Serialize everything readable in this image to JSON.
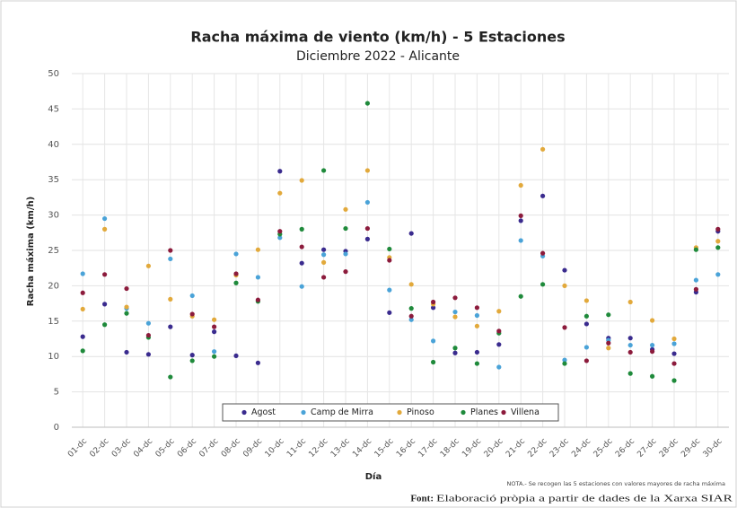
{
  "chart_data": {
    "type": "scatter",
    "title": "Racha máxima de viento (km/h) - 5 Estaciones",
    "subtitle": "Diciembre 2022 - Alicante",
    "y_label": "Racha máxima (km/h)",
    "x_label": "Día",
    "note": "NOTA.- Se recogen las 5 estaciones con valores mayores de racha máxima",
    "source_label": "Font:",
    "source": "Elaboració pròpia a partir de dades de la Xarxa SIAR",
    "categories": [
      "01-dc",
      "02-dc",
      "03-dc",
      "04-dc",
      "05-dc",
      "06-dc",
      "07-dc",
      "08-dc",
      "09-dc",
      "10-dc",
      "11-dc",
      "12-dc",
      "13-dc",
      "14-dc",
      "15-dc",
      "16-dc",
      "17-dc",
      "18-dc",
      "19-dc",
      "20-dc",
      "21-dc",
      "22-dc",
      "23-dc",
      "24-dc",
      "25-dc",
      "26-dc",
      "27-dc",
      "28-dc",
      "29-dc",
      "30-dc"
    ],
    "ylim": [
      0,
      50
    ],
    "yticks": [
      0,
      5,
      10,
      15,
      20,
      25,
      30,
      35,
      40,
      45,
      50
    ],
    "grid": true,
    "legend": "bottom",
    "series": [
      {
        "name": "Agost",
        "color": "#3a2b8e",
        "values": [
          12.8,
          17.4,
          10.6,
          10.3,
          14.2,
          10.2,
          13.5,
          10.1,
          9.1,
          36.2,
          23.2,
          25.1,
          24.9,
          26.6,
          16.2,
          27.4,
          16.9,
          10.5,
          10.6,
          11.7,
          29.2,
          32.7,
          22.2,
          14.6,
          12.6,
          12.6,
          11.0,
          10.4,
          19.1,
          27.7
        ]
      },
      {
        "name": "Camp de Mirra",
        "color": "#4aa3d8",
        "values": [
          21.7,
          29.5,
          16.8,
          14.7,
          23.8,
          18.6,
          10.7,
          24.5,
          21.2,
          26.8,
          19.9,
          24.4,
          24.5,
          31.8,
          19.4,
          15.2,
          12.2,
          16.3,
          15.8,
          8.5,
          26.4,
          24.2,
          9.5,
          11.3,
          12.3,
          11.6,
          11.6,
          11.8,
          20.8,
          21.6
        ]
      },
      {
        "name": "Pinoso",
        "color": "#e2a93b",
        "values": [
          16.7,
          28.0,
          17.0,
          22.8,
          18.1,
          15.7,
          15.2,
          21.5,
          25.1,
          33.1,
          34.9,
          23.3,
          30.8,
          36.3,
          24.0,
          20.2,
          17.4,
          15.6,
          14.3,
          16.4,
          34.2,
          39.3,
          20.0,
          17.9,
          11.2,
          17.7,
          15.1,
          12.5,
          25.4,
          26.3
        ]
      },
      {
        "name": "Planes",
        "color": "#1f8a3b",
        "values": [
          10.8,
          14.5,
          16.1,
          12.7,
          7.1,
          9.4,
          10.0,
          20.4,
          17.8,
          27.3,
          28.0,
          36.3,
          28.1,
          45.8,
          25.2,
          16.8,
          9.2,
          11.2,
          9.0,
          13.3,
          18.5,
          20.2,
          9.0,
          15.7,
          15.9,
          7.6,
          7.2,
          6.6,
          25.1,
          25.4
        ]
      },
      {
        "name": "Villena",
        "color": "#8c1b3c",
        "values": [
          19.0,
          21.6,
          19.6,
          13.0,
          25.0,
          16.0,
          14.2,
          21.7,
          18.0,
          27.7,
          25.5,
          21.2,
          22.0,
          28.1,
          23.6,
          15.7,
          17.7,
          18.3,
          16.9,
          13.6,
          29.9,
          24.6,
          14.1,
          9.4,
          11.9,
          10.6,
          10.7,
          9.0,
          19.5,
          28.0
        ]
      }
    ]
  }
}
